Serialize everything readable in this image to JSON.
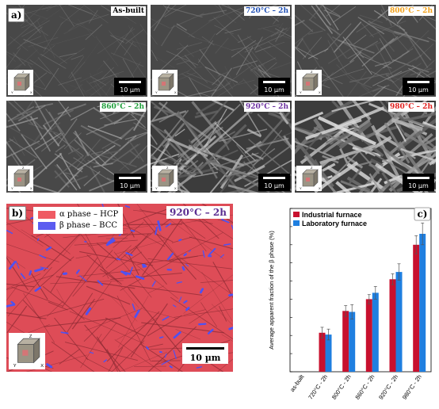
{
  "panel_a": {
    "label": "a)",
    "images": [
      {
        "condition": "As-built",
        "color": "#000000",
        "scale": "10 µm"
      },
      {
        "condition": "720°C – 2h",
        "color": "#1f4fb4",
        "scale": "10 µm"
      },
      {
        "condition": "800°C – 2h",
        "color": "#f2a11a",
        "scale": "10 µm"
      },
      {
        "condition": "860°C – 2h",
        "color": "#1e9e3a",
        "scale": "10 µm"
      },
      {
        "condition": "920°C – 2h",
        "color": "#6b2fa0",
        "scale": "10 µm"
      },
      {
        "condition": "980°C – 2h",
        "color": "#e0201e",
        "scale": "10 µm"
      }
    ]
  },
  "panel_b": {
    "label": "b)",
    "legend": [
      {
        "text": "α phase  – HCP",
        "color": "#ef5b63"
      },
      {
        "text": "β phase  – BCC",
        "color": "#5b5cf0"
      }
    ],
    "condition": "920°C – 2h",
    "scale": "10 µm"
  },
  "panel_c": {
    "label": "c)"
  },
  "chart_data": {
    "type": "bar",
    "categories": [
      "as-built",
      "720°C - 2h",
      "800°C - 2h",
      "860°C - 2h",
      "920°C - 2h",
      "980°C - 2h"
    ],
    "series": [
      {
        "name": "Industrial furnace",
        "color": "#c8102e",
        "values": [
          0.0,
          2.15,
          3.35,
          4.0,
          5.1,
          7.0
        ],
        "errors": [
          0,
          0.3,
          0.3,
          0.25,
          0.3,
          0.5
        ]
      },
      {
        "name": "Laboratory furnace",
        "color": "#1f7fe0",
        "values": [
          0.0,
          2.05,
          3.3,
          4.35,
          5.5,
          7.6
        ],
        "errors": [
          0,
          0.3,
          0.4,
          0.35,
          0.45,
          0.6
        ]
      }
    ],
    "ylabel": "Average apparent fraction of the β phase (%)",
    "ylim": [
      0,
      9
    ],
    "legend_position": "top-left",
    "grid": false
  }
}
